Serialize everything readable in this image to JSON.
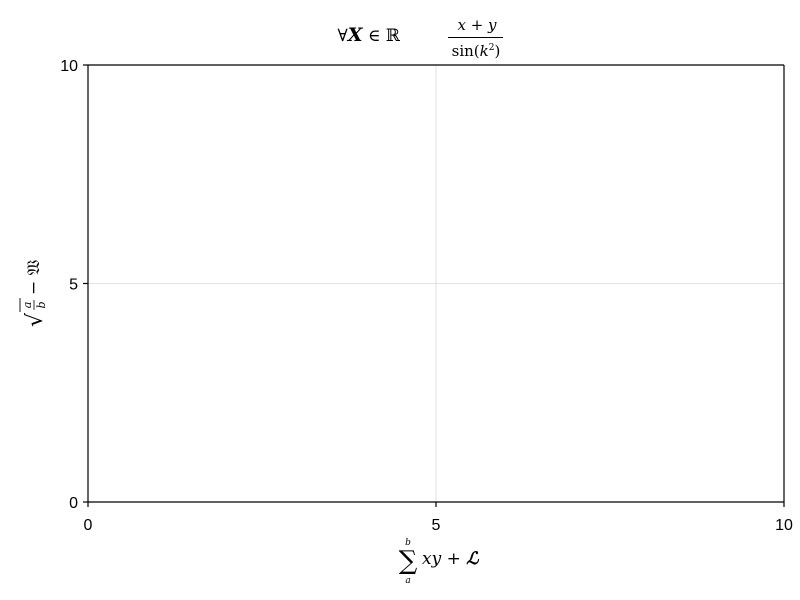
{
  "chart_data": {
    "type": "line",
    "title": "∀𝑿 ∈ ℝ   (x + y) / sin(k²)",
    "xlabel": "∑ₐᵇ xy + ℒ",
    "ylabel": "√(a/b) − 𝔚",
    "xlim": [
      0,
      10
    ],
    "ylim": [
      0,
      10
    ],
    "x_ticks": [
      0,
      5,
      10
    ],
    "y_ticks": [
      0,
      5,
      10
    ],
    "x_tick_labels": [
      "0",
      "5",
      "10"
    ],
    "y_tick_labels": [
      "0",
      "5",
      "10"
    ],
    "grid": true,
    "series": []
  }
}
